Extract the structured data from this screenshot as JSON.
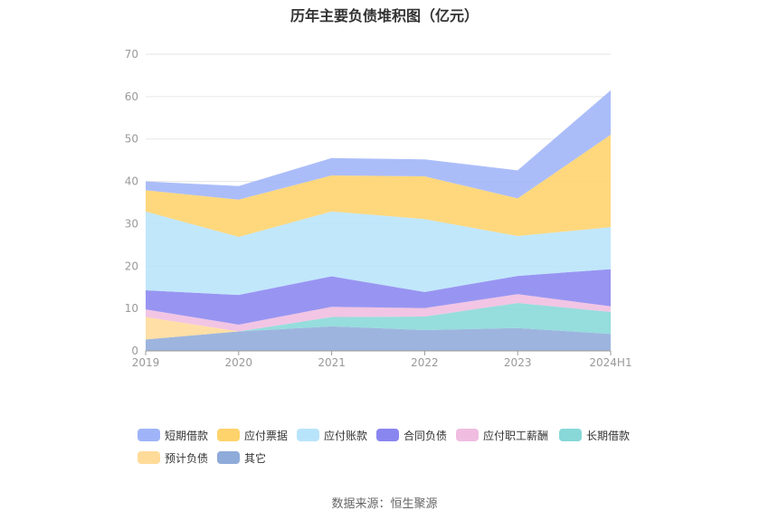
{
  "chart_data": {
    "type": "area",
    "stacked": true,
    "title": "历年主要负债堆积图（亿元）",
    "source": "数据来源：恒生聚源",
    "categories": [
      "2019",
      "2020",
      "2021",
      "2022",
      "2023",
      "2024H1"
    ],
    "ylim": [
      0,
      70
    ],
    "yticks": [
      "0",
      "10",
      "20",
      "30",
      "40",
      "50",
      "60",
      "70"
    ],
    "grid": true,
    "legend_position": "bottom",
    "series": [
      {
        "name": "其它",
        "color": "#8fabd9",
        "values": [
          2.7,
          4.6,
          5.8,
          4.9,
          5.4,
          4.0
        ]
      },
      {
        "name": "预计负债",
        "color": "#ffdb9a",
        "values": [
          5.3,
          0.0,
          0.0,
          0.0,
          0.0,
          0.0
        ]
      },
      {
        "name": "长期借款",
        "color": "#88d8d8",
        "values": [
          0.0,
          0.0,
          2.2,
          3.2,
          5.9,
          5.2
        ]
      },
      {
        "name": "应付职工薪酬",
        "color": "#f0bde0",
        "values": [
          1.8,
          1.6,
          2.4,
          2.0,
          2.1,
          1.3
        ]
      },
      {
        "name": "合同负债",
        "color": "#8a86f0",
        "values": [
          4.5,
          7.0,
          7.2,
          3.8,
          4.3,
          8.8
        ]
      },
      {
        "name": "应付账款",
        "color": "#b8e4fb",
        "values": [
          18.6,
          13.7,
          15.3,
          17.2,
          9.4,
          9.9
        ]
      },
      {
        "name": "应付票据",
        "color": "#ffd36b",
        "values": [
          5.0,
          8.8,
          8.5,
          10.1,
          8.9,
          21.8
        ]
      },
      {
        "name": "短期借款",
        "color": "#9fb4f8",
        "values": [
          2.1,
          3.2,
          4.1,
          4.0,
          6.6,
          10.5
        ]
      }
    ],
    "legend_order": [
      "短期借款",
      "应付票据",
      "应付账款",
      "合同负债",
      "应付职工薪酬",
      "长期借款",
      "预计负债",
      "其它"
    ]
  }
}
